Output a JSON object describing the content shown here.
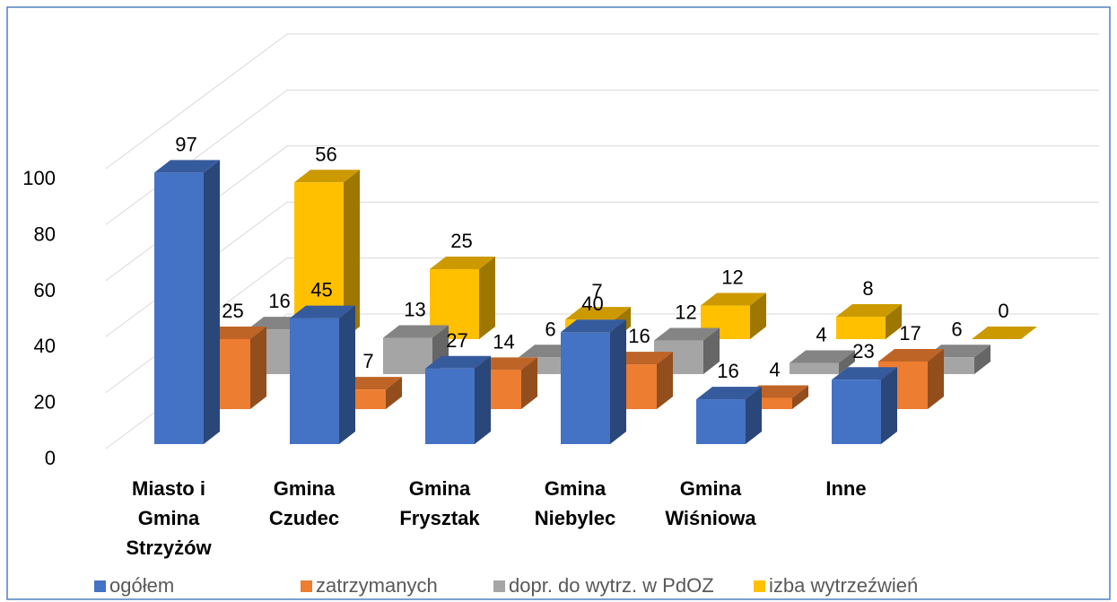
{
  "chart_data": {
    "type": "bar3d",
    "categories": [
      "Miasto i Gmina Strzyżów",
      "Gmina Czudec",
      "Gmina Frysztak",
      "Gmina Niebylec",
      "Gmina Wiśniowa",
      "Inne"
    ],
    "series": [
      {
        "name": "ogółem",
        "color": "#4472c4",
        "values": [
          97,
          45,
          27,
          40,
          16,
          23
        ]
      },
      {
        "name": "zatrzymanych",
        "color": "#ed7d31",
        "values": [
          25,
          7,
          14,
          16,
          4,
          17
        ]
      },
      {
        "name": "dopr. do wytrz. w PdOZ",
        "color": "#a5a5a5",
        "values": [
          16,
          13,
          6,
          12,
          4,
          6
        ]
      },
      {
        "name": "izba wytrzeźwień",
        "color": "#ffc000",
        "values": [
          56,
          25,
          7,
          12,
          8,
          0
        ]
      }
    ],
    "ylim": [
      0,
      100
    ],
    "yticks": [
      0,
      20,
      40,
      60,
      80,
      100
    ],
    "grid": true
  }
}
